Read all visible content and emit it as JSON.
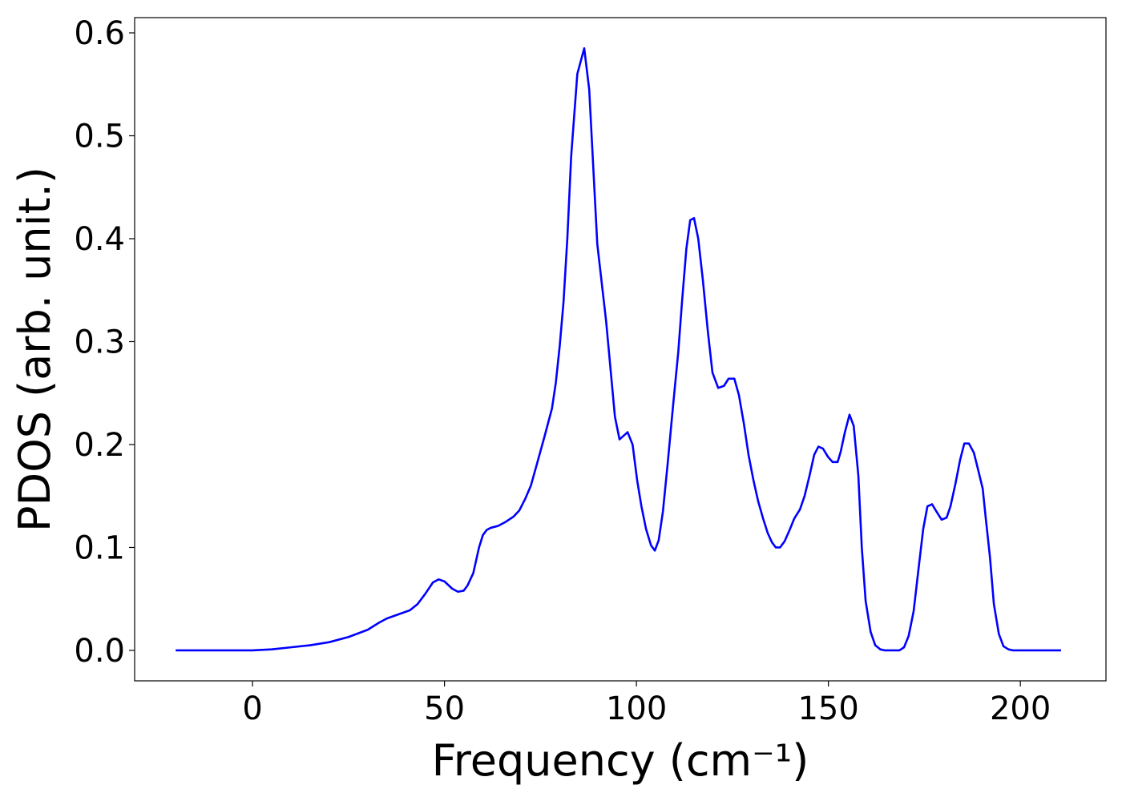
{
  "chart_data": {
    "type": "line",
    "xlabel": "Frequency (cm⁻¹)",
    "ylabel": "PDOS (arb. unit.)",
    "x": [
      -20,
      0,
      5,
      10,
      15,
      20,
      25,
      30,
      33,
      35,
      38,
      41,
      43,
      45,
      47,
      48.5,
      50,
      52,
      53.5,
      55,
      56,
      57.5,
      59,
      60,
      61,
      62,
      64,
      66,
      68,
      69.5,
      71,
      72.5,
      74,
      76,
      78,
      79,
      80,
      81,
      82,
      83,
      84.6,
      86.4,
      87.7,
      89.8,
      92.1,
      94.4,
      95.6,
      97.7,
      99,
      100.2,
      101.3,
      102.5,
      103.8,
      104.8,
      105.8,
      106.9,
      108.1,
      109.6,
      110.9,
      111.9,
      113,
      114,
      115,
      116.1,
      117.3,
      118.6,
      119.8,
      121.3,
      122.8,
      124,
      125.5,
      126.7,
      128,
      129.2,
      130.5,
      131.7,
      133,
      134.2,
      135.3,
      136.3,
      137.4,
      138.6,
      139.9,
      141.1,
      142.6,
      143.8,
      145.1,
      146.3,
      147.4,
      148.6,
      149.9,
      151.1,
      152.4,
      153.2,
      154.3,
      155.5,
      156.6,
      157.8,
      158.7,
      159.7,
      161,
      162.2,
      163.5,
      164.7,
      168.5,
      169.7,
      170.9,
      172.2,
      173.5,
      174.7,
      175.8,
      177,
      178.3,
      179.5,
      180.8,
      181.8,
      183.1,
      184.3,
      185.4,
      186.6,
      187.9,
      188.9,
      190.2,
      191,
      192.1,
      193.1,
      194.4,
      195.6,
      196.9,
      198.1,
      210.6
    ],
    "series": [
      {
        "color": "#0000ff",
        "values": [
          0,
          0,
          0.001,
          0.003,
          0.005,
          0.008,
          0.013,
          0.02,
          0.027,
          0.031,
          0.035,
          0.039,
          0.045,
          0.055,
          0.066,
          0.069,
          0.067,
          0.06,
          0.057,
          0.058,
          0.063,
          0.075,
          0.1,
          0.112,
          0.117,
          0.119,
          0.121,
          0.125,
          0.13,
          0.136,
          0.147,
          0.16,
          0.18,
          0.207,
          0.235,
          0.26,
          0.295,
          0.338,
          0.4,
          0.48,
          0.56,
          0.585,
          0.545,
          0.395,
          0.32,
          0.227,
          0.205,
          0.212,
          0.2,
          0.165,
          0.14,
          0.118,
          0.102,
          0.097,
          0.107,
          0.135,
          0.18,
          0.24,
          0.29,
          0.34,
          0.39,
          0.418,
          0.42,
          0.4,
          0.36,
          0.31,
          0.27,
          0.255,
          0.257,
          0.264,
          0.264,
          0.248,
          0.22,
          0.19,
          0.165,
          0.145,
          0.128,
          0.114,
          0.105,
          0.1,
          0.1,
          0.106,
          0.117,
          0.128,
          0.137,
          0.15,
          0.17,
          0.19,
          0.198,
          0.196,
          0.188,
          0.183,
          0.183,
          0.193,
          0.212,
          0.229,
          0.218,
          0.17,
          0.1,
          0.048,
          0.018,
          0.005,
          0.001,
          0,
          0,
          0.003,
          0.014,
          0.038,
          0.08,
          0.118,
          0.14,
          0.142,
          0.134,
          0.127,
          0.129,
          0.14,
          0.162,
          0.185,
          0.201,
          0.201,
          0.192,
          0.177,
          0.157,
          0.128,
          0.09,
          0.045,
          0.016,
          0.004,
          0.001,
          0,
          0
        ]
      }
    ],
    "xlim": [
      -30.7,
      222.3
    ],
    "xticks": [
      0,
      50,
      100,
      150,
      200
    ],
    "ylim": [
      -0.0296,
      0.6148
    ],
    "yticks": [
      {
        "value": 0,
        "label": "0.0"
      },
      0.1,
      0.2,
      0.3,
      0.4,
      0.5,
      0.6
    ],
    "grid": false
  }
}
